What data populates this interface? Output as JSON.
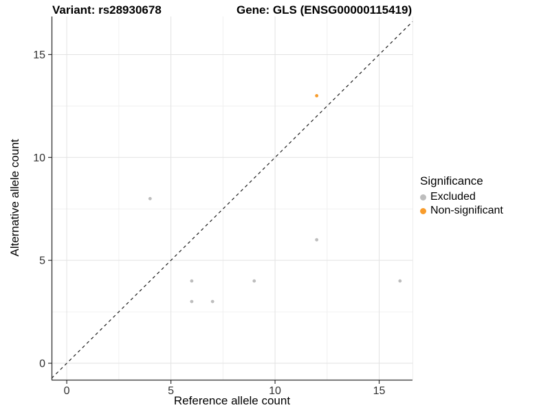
{
  "chart_data": {
    "type": "scatter",
    "titles": {
      "left": "Variant: rs28930678",
      "right": "Gene: GLS (ENSG00000115419)"
    },
    "xlabel": "Reference allele count",
    "ylabel": "Alternative allele count",
    "xlim": [
      -0.73,
      16.6
    ],
    "ylim": [
      -0.8,
      16.85
    ],
    "x_ticks": [
      0,
      5,
      10,
      15
    ],
    "y_ticks": [
      0,
      5,
      10,
      15
    ],
    "x_minor_ticks": [
      2.5,
      7.5,
      12.5
    ],
    "y_minor_ticks": [
      2.5,
      7.5,
      12.5
    ],
    "grid": "major+minor",
    "identity_line": {
      "slope": 1,
      "intercept": 0,
      "style": "dashed",
      "color": "#1a1a1a"
    },
    "series": [
      {
        "name": "Excluded",
        "color": "#BDBDBD",
        "points": [
          [
            4,
            8
          ],
          [
            6,
            3
          ],
          [
            6,
            4
          ],
          [
            7,
            3
          ],
          [
            9,
            4
          ],
          [
            12,
            6
          ],
          [
            16,
            4
          ]
        ]
      },
      {
        "name": "Non-significant",
        "color": "#F89C2C",
        "points": [
          [
            12,
            13
          ]
        ]
      }
    ],
    "legend": {
      "title": "Significance",
      "position": "right",
      "items": [
        {
          "label": "Excluded",
          "color": "#BDBDBD"
        },
        {
          "label": "Non-significant",
          "color": "#F89C2C"
        }
      ]
    },
    "colors": {
      "grid_major": "#E2E2E2",
      "grid_minor": "#F0F0F0",
      "panel_edge": "#ECECEC",
      "axis_line": "#2e2e2e",
      "tick_label": "#303030",
      "background": "#FFFFFF"
    }
  }
}
